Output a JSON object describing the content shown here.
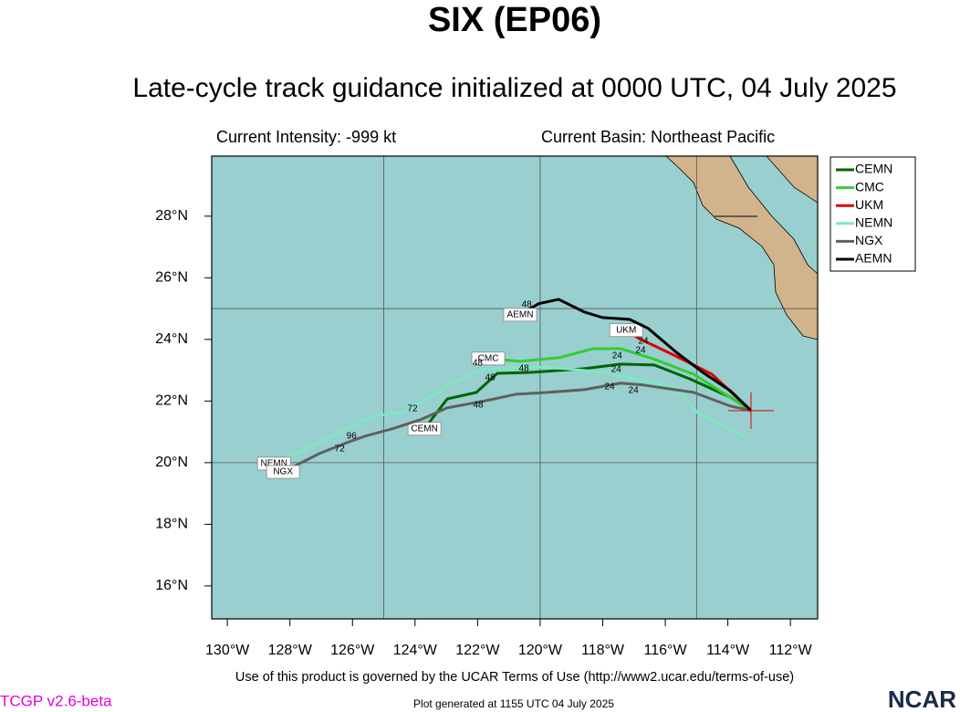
{
  "header": {
    "title": "SIX (EP06)",
    "subtitle": "Late-cycle track guidance initialized at 0000 UTC, 04 July 2025",
    "intensity": "Current Intensity: -999 kt",
    "basin": "Current Basin: Northeast Pacific"
  },
  "footer": {
    "terms": "Use of this product is governed by the UCAR Terms of Use (http://www2.ucar.edu/terms-of-use)",
    "version": "TCGP v2.6-beta",
    "generated": "Plot generated at 1155 UTC   04 July 2025",
    "logo": "NCAR"
  },
  "chart_data": {
    "type": "track-map",
    "xlim": [
      -130.5,
      -111.13
    ],
    "ylim": [
      14.93,
      29.95
    ],
    "xticks": [
      {
        "value": -130,
        "label": "130°W"
      },
      {
        "value": -128,
        "label": "128°W"
      },
      {
        "value": -126,
        "label": "126°W"
      },
      {
        "value": -124,
        "label": "124°W"
      },
      {
        "value": -122,
        "label": "122°W"
      },
      {
        "value": -120,
        "label": "120°W"
      },
      {
        "value": -118,
        "label": "118°W"
      },
      {
        "value": -116,
        "label": "116°W"
      },
      {
        "value": -114,
        "label": "114°W"
      },
      {
        "value": -112,
        "label": "112°W"
      }
    ],
    "yticks": [
      {
        "value": 16,
        "label": "16°N"
      },
      {
        "value": 18,
        "label": "18°N"
      },
      {
        "value": 20,
        "label": "20°N"
      },
      {
        "value": 22,
        "label": "22°N"
      },
      {
        "value": 24,
        "label": "24°N"
      },
      {
        "value": 26,
        "label": "26°N"
      },
      {
        "value": 28,
        "label": "28°N"
      }
    ],
    "grid_lon": [
      -125,
      -120,
      -115
    ],
    "grid_lat": [
      20,
      25
    ],
    "current_position": {
      "lon": -113.26,
      "lat": 21.69
    },
    "series": [
      {
        "name": "CEMN",
        "color": "#006400",
        "lon": [
          -113.26,
          -113.93,
          -115.24,
          -116.35,
          -117.43,
          -118.59,
          -120.34,
          -121.37,
          -122.04,
          -122.97,
          -123.7
        ],
        "lat": [
          21.69,
          22.13,
          22.73,
          23.17,
          23.2,
          23.05,
          22.93,
          22.9,
          22.28,
          22.07,
          21.1
        ]
      },
      {
        "name": "CMC",
        "color": "#32cd32",
        "lon": [
          -113.26,
          -115.09,
          -116.41,
          -117.43,
          -118.3,
          -119.38,
          -120.64,
          -121.66
        ],
        "lat": [
          21.69,
          22.87,
          23.38,
          23.7,
          23.7,
          23.41,
          23.29,
          23.38
        ]
      },
      {
        "name": "UKM",
        "color": "#e00000",
        "lon": [
          -113.26,
          -114.51,
          -115.68,
          -116.84,
          -117.25
        ],
        "lat": [
          21.69,
          22.87,
          23.47,
          24.03,
          24.3
        ]
      },
      {
        "name": "NEMN",
        "color": "#7fe8c0",
        "lon": [
          -113.4,
          -114.95,
          -115.68,
          -116.84,
          -118.01,
          -119.18,
          -120.2,
          -121.8,
          -122.82,
          -123.55,
          -124.43,
          -125.3,
          -126.18,
          -127.2,
          -128.51
        ],
        "lat": [
          20.8,
          21.6,
          22.43,
          22.7,
          22.93,
          23.05,
          23.11,
          23.02,
          22.58,
          22.1,
          21.63,
          21.51,
          21.1,
          20.59,
          19.97
        ]
      },
      {
        "name": "NGX",
        "color": "#606060",
        "lon": [
          -113.26,
          -113.93,
          -115.09,
          -116.7,
          -117.43,
          -118.59,
          -119.76,
          -120.78,
          -121.74,
          -122.97,
          -123.84,
          -124.72,
          -125.6,
          -126.18,
          -127.05,
          -128.22
        ],
        "lat": [
          21.69,
          21.84,
          22.28,
          22.52,
          22.58,
          22.37,
          22.28,
          22.22,
          22.01,
          21.78,
          21.39,
          21.1,
          20.86,
          20.65,
          20.3,
          19.7
        ]
      },
      {
        "name": "AEMN",
        "color": "#000000",
        "lon": [
          -113.26,
          -113.93,
          -114.8,
          -115.68,
          -116.55,
          -117.14,
          -118.01,
          -118.59,
          -119.41,
          -120.05,
          -120.64
        ],
        "lat": [
          21.69,
          22.34,
          22.93,
          23.61,
          24.36,
          24.65,
          24.71,
          24.89,
          25.3,
          25.16,
          24.8
        ]
      }
    ],
    "hour_labels": [
      {
        "label": "24",
        "lon": -117.54,
        "lat": 23.47
      },
      {
        "label": "24",
        "lon": -116.79,
        "lat": 23.64
      },
      {
        "label": "24",
        "lon": -116.7,
        "lat": 23.94
      },
      {
        "label": "24",
        "lon": -117.57,
        "lat": 23.02
      },
      {
        "label": "24",
        "lon": -117.78,
        "lat": 22.46
      },
      {
        "label": "24",
        "lon": -117.02,
        "lat": 22.34
      },
      {
        "label": "48",
        "lon": -122.0,
        "lat": 23.23
      },
      {
        "label": "48",
        "lon": -121.6,
        "lat": 22.76
      },
      {
        "label": "48",
        "lon": -120.52,
        "lat": 23.05
      },
      {
        "label": "48",
        "lon": -121.98,
        "lat": 21.87
      },
      {
        "label": "48",
        "lon": -120.43,
        "lat": 25.13
      },
      {
        "label": "72",
        "lon": -124.08,
        "lat": 21.75
      },
      {
        "label": "72",
        "lon": -126.41,
        "lat": 20.44
      },
      {
        "label": "96",
        "lon": -126.03,
        "lat": 20.86
      }
    ]
  }
}
